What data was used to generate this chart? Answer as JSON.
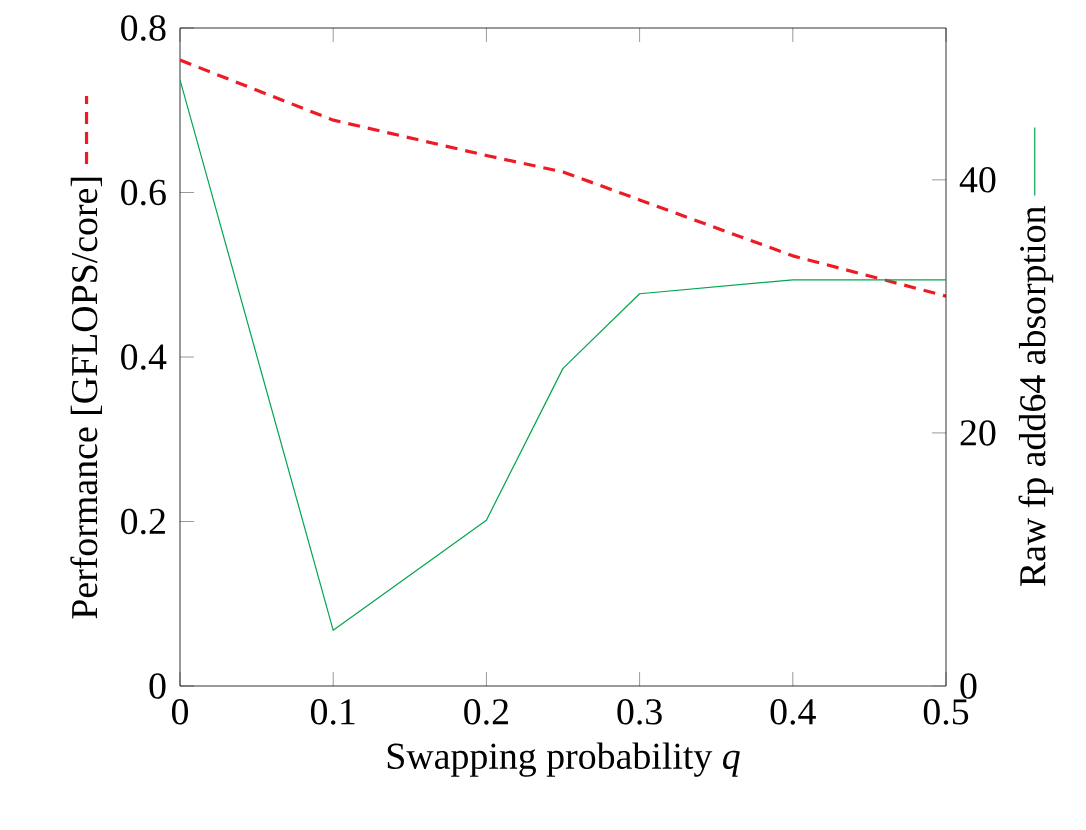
{
  "chart_data": {
    "type": "line",
    "xlabel": "Swapping probability *q*",
    "ylabel": "Performance [GFLOPS/core]",
    "y2label": "Raw fp add64 absorption",
    "x": [
      0,
      0.1,
      0.2,
      0.25,
      0.3,
      0.4,
      0.5
    ],
    "series": [
      {
        "color": "#ed1c24",
        "line_style": "dashed",
        "values": [
          0.761,
          0.688,
          0.645,
          0.625,
          0.591,
          0.523,
          0.474
        ]
      },
      {
        "color": "#00a650",
        "line_style": "solid",
        "axis": "y2",
        "values": [
          47.9,
          4.4,
          13.1,
          25.1,
          31.0,
          32.1,
          32.1
        ]
      }
    ],
    "xlim": [
      0,
      0.5
    ],
    "xticks": [
      0,
      0.1,
      0.2,
      0.3,
      0.4,
      0.5
    ],
    "ylim": [
      0,
      0.8
    ],
    "yticks": [
      0,
      0.2,
      0.4,
      0.6,
      0.8
    ],
    "y2lim": [
      0,
      52
    ],
    "y2ticks": [
      0,
      20,
      40
    ],
    "marker": "none",
    "grid": false
  }
}
